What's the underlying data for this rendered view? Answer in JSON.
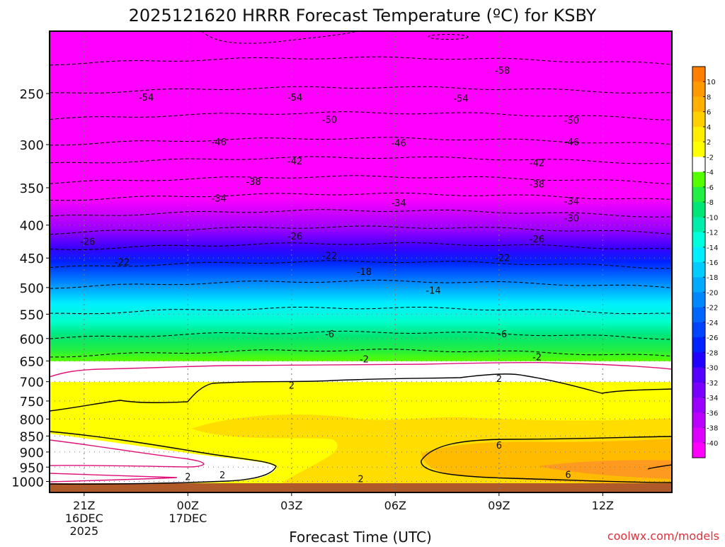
{
  "chart_data": {
    "type": "heatmap",
    "title": "2025121620 HRRR Forecast Temperature (ºC) for KSBY",
    "xlabel": "Forecast Time (UTC)",
    "ylabel": "",
    "credit": "coolwx.com/models",
    "x_ticks": [
      {
        "label": "21Z",
        "hour": 21,
        "sub": [
          "16DEC",
          "2025"
        ]
      },
      {
        "label": "00Z",
        "hour": 24,
        "sub": [
          "17DEC"
        ]
      },
      {
        "label": "03Z",
        "hour": 27,
        "sub": []
      },
      {
        "label": "06Z",
        "hour": 30,
        "sub": []
      },
      {
        "label": "09Z",
        "hour": 33,
        "sub": []
      },
      {
        "label": "12Z",
        "hour": 36,
        "sub": []
      }
    ],
    "xlim": [
      20,
      38
    ],
    "y_scale": "log",
    "y_inverted": true,
    "ylim": [
      1040,
      200
    ],
    "y_ticks": [
      250,
      300,
      350,
      400,
      450,
      500,
      550,
      600,
      650,
      700,
      750,
      800,
      850,
      900,
      950,
      1000
    ],
    "grid": true,
    "colorbar": {
      "position": "right",
      "labels": [
        10,
        8,
        6,
        4,
        2,
        -2,
        -4,
        -6,
        -8,
        -10,
        -12,
        -14,
        -16,
        -18,
        -20,
        -22,
        -24,
        -26,
        -28,
        -30,
        -32,
        -34,
        -36,
        -38,
        -40
      ],
      "colors": [
        "#ff8000",
        "#ff9900",
        "#ffb000",
        "#ffd000",
        "#ffee00",
        "#ffff00",
        "#ffffff",
        "#55ff00",
        "#22ee44",
        "#00e677",
        "#00eeaa",
        "#00ffdd",
        "#00eeff",
        "#00ccff",
        "#00aaff",
        "#0088ff",
        "#0066ff",
        "#0044ff",
        "#0022ff",
        "#2200ff",
        "#5500ff",
        "#7700ff",
        "#9900ff",
        "#bb00ff",
        "#dd00ff",
        "#ff00ff"
      ]
    },
    "isotherm_profile": [
      {
        "pressure": 1000,
        "temp": 4
      },
      {
        "pressure": 950,
        "temp": 5
      },
      {
        "pressure": 900,
        "temp": 4
      },
      {
        "pressure": 850,
        "temp": 4
      },
      {
        "pressure": 800,
        "temp": 3
      },
      {
        "pressure": 750,
        "temp": 3
      },
      {
        "pressure": 700,
        "temp": 1
      },
      {
        "pressure": 650,
        "temp": -1
      },
      {
        "pressure": 600,
        "temp": -6
      },
      {
        "pressure": 550,
        "temp": -10
      },
      {
        "pressure": 500,
        "temp": -14
      },
      {
        "pressure": 450,
        "temp": -20
      },
      {
        "pressure": 400,
        "temp": -28
      },
      {
        "pressure": 350,
        "temp": -37
      },
      {
        "pressure": 300,
        "temp": -46
      },
      {
        "pressure": 250,
        "temp": -54
      },
      {
        "pressure": 225,
        "temp": -58
      }
    ],
    "contour_labels": [
      {
        "text": "-58",
        "hour": 33.1,
        "pressure": 230
      },
      {
        "text": "-54",
        "hour": 22.8,
        "pressure": 253
      },
      {
        "text": "-54",
        "hour": 27.1,
        "pressure": 253
      },
      {
        "text": "-54",
        "hour": 31.9,
        "pressure": 254
      },
      {
        "text": "-50",
        "hour": 28.1,
        "pressure": 274
      },
      {
        "text": "-50",
        "hour": 35.1,
        "pressure": 275
      },
      {
        "text": "-46",
        "hour": 24.9,
        "pressure": 297
      },
      {
        "text": "-46",
        "hour": 30.1,
        "pressure": 298
      },
      {
        "text": "-46",
        "hour": 35.1,
        "pressure": 297
      },
      {
        "text": "-42",
        "hour": 27.1,
        "pressure": 318
      },
      {
        "text": "-42",
        "hour": 34.1,
        "pressure": 320
      },
      {
        "text": "-38",
        "hour": 25.9,
        "pressure": 342
      },
      {
        "text": "-38",
        "hour": 34.1,
        "pressure": 345
      },
      {
        "text": "-34",
        "hour": 24.9,
        "pressure": 363
      },
      {
        "text": "-34",
        "hour": 30.1,
        "pressure": 369
      },
      {
        "text": "-34",
        "hour": 35.1,
        "pressure": 367
      },
      {
        "text": "-30",
        "hour": 35.1,
        "pressure": 390
      },
      {
        "text": "-26",
        "hour": 21.1,
        "pressure": 424
      },
      {
        "text": "-26",
        "hour": 27.1,
        "pressure": 416
      },
      {
        "text": "-26",
        "hour": 34.1,
        "pressure": 420
      },
      {
        "text": "-22",
        "hour": 22.1,
        "pressure": 456
      },
      {
        "text": "-22",
        "hour": 28.1,
        "pressure": 446
      },
      {
        "text": "-22",
        "hour": 33.1,
        "pressure": 449
      },
      {
        "text": "-18",
        "hour": 29.1,
        "pressure": 472
      },
      {
        "text": "-14",
        "hour": 31.1,
        "pressure": 505
      },
      {
        "text": "-6",
        "hour": 28.1,
        "pressure": 590
      },
      {
        "text": "-6",
        "hour": 33.1,
        "pressure": 590
      },
      {
        "text": "-2",
        "hour": 29.1,
        "pressure": 645
      },
      {
        "text": "-2",
        "hour": 34.1,
        "pressure": 640
      },
      {
        "text": "2",
        "hour": 27.0,
        "pressure": 709
      },
      {
        "text": "2",
        "hour": 33.0,
        "pressure": 692
      },
      {
        "text": "6",
        "hour": 33.0,
        "pressure": 878
      },
      {
        "text": "6",
        "hour": 35.0,
        "pressure": 975
      },
      {
        "text": "2",
        "hour": 24.0,
        "pressure": 982
      },
      {
        "text": "2",
        "hour": 25.0,
        "pressure": 976
      },
      {
        "text": "2",
        "hour": 29.0,
        "pressure": 990
      }
    ],
    "colors": {
      "plus2_line": "#000000",
      "zero_line": "#e0107a",
      "ground": "#b05a2a"
    }
  }
}
